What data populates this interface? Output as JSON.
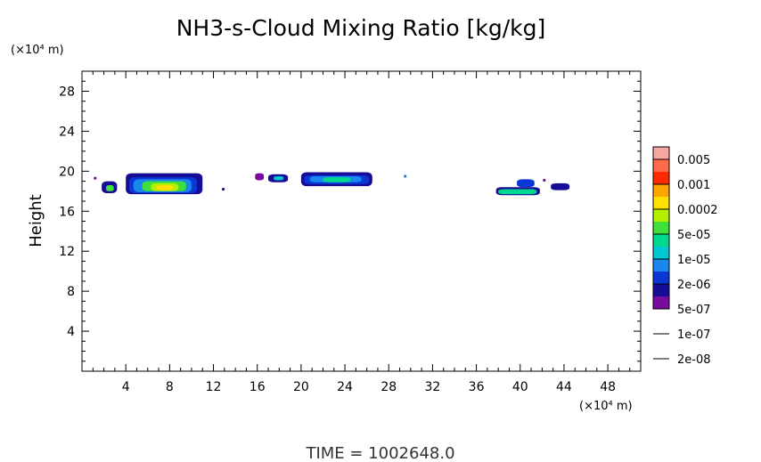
{
  "chart_data": {
    "type": "heatmap",
    "title": "NH3-s-Cloud Mixing Ratio [kg/kg]",
    "ylabel": "Height",
    "yunit": "(×10⁴ m)",
    "xunit": "(×10⁴ m)",
    "xlim": [
      0,
      51
    ],
    "ylim": [
      0,
      30
    ],
    "xticks": [
      "4",
      "8",
      "12",
      "16",
      "20",
      "24",
      "28",
      "32",
      "36",
      "40",
      "44",
      "48"
    ],
    "yticks": [
      "4",
      "8",
      "12",
      "16",
      "20",
      "24",
      "28"
    ],
    "colorbar": {
      "labels": [
        "0.005",
        "0.001",
        "0.0002",
        "5e-05",
        "1e-05",
        "2e-06",
        "5e-07",
        "1e-07",
        "2e-08"
      ],
      "colors": [
        "#f7a6a0",
        "#ff6a4a",
        "#ff2a00",
        "#ffa500",
        "#ffe000",
        "#b4ee00",
        "#3fe03a",
        "#00d88e",
        "#00c8d2",
        "#1a86ee",
        "#0a36d6",
        "#160c96",
        "#7a0aa0"
      ]
    },
    "regions": [
      {
        "x": [
          1.8,
          3.2
        ],
        "y": [
          17.8,
          19.0
        ],
        "level": 1
      },
      {
        "x": [
          2.2,
          2.9
        ],
        "y": [
          18.0,
          18.6
        ],
        "level": 6
      },
      {
        "x": [
          4.0,
          11.0
        ],
        "y": [
          17.7,
          19.8
        ],
        "level": 1
      },
      {
        "x": [
          4.3,
          10.5
        ],
        "y": [
          17.8,
          19.4
        ],
        "level": 2
      },
      {
        "x": [
          4.7,
          10.0
        ],
        "y": [
          17.9,
          19.2
        ],
        "level": 3
      },
      {
        "x": [
          5.5,
          9.5
        ],
        "y": [
          18.0,
          19.0
        ],
        "level": 6
      },
      {
        "x": [
          6.3,
          8.8
        ],
        "y": [
          18.0,
          18.8
        ],
        "level": 7
      },
      {
        "x": [
          6.8,
          8.3
        ],
        "y": [
          18.1,
          18.6
        ],
        "level": 8
      },
      {
        "x": [
          15.8,
          16.6
        ],
        "y": [
          19.1,
          19.8
        ],
        "level": 0
      },
      {
        "x": [
          17.0,
          18.8
        ],
        "y": [
          18.9,
          19.7
        ],
        "level": 1
      },
      {
        "x": [
          17.5,
          18.4
        ],
        "y": [
          19.1,
          19.5
        ],
        "level": 4
      },
      {
        "x": [
          20.0,
          26.5
        ],
        "y": [
          18.5,
          19.9
        ],
        "level": 1
      },
      {
        "x": [
          20.3,
          26.2
        ],
        "y": [
          18.7,
          19.6
        ],
        "level": 2
      },
      {
        "x": [
          20.8,
          25.5
        ],
        "y": [
          18.9,
          19.5
        ],
        "level": 3
      },
      {
        "x": [
          22.0,
          24.5
        ],
        "y": [
          18.9,
          19.4
        ],
        "level": 5
      },
      {
        "x": [
          37.8,
          41.8
        ],
        "y": [
          17.6,
          18.4
        ],
        "level": 1
      },
      {
        "x": [
          38.0,
          41.5
        ],
        "y": [
          17.7,
          18.2
        ],
        "level": 5
      },
      {
        "x": [
          39.7,
          41.3
        ],
        "y": [
          18.4,
          19.2
        ],
        "level": 2
      },
      {
        "x": [
          42.8,
          44.5
        ],
        "y": [
          18.1,
          18.8
        ],
        "level": 1
      }
    ],
    "specks": [
      {
        "x": 1.2,
        "y": 19.3,
        "level": 0
      },
      {
        "x": 12.9,
        "y": 18.2,
        "level": 1
      },
      {
        "x": 29.5,
        "y": 19.5,
        "level": 3
      },
      {
        "x": 42.2,
        "y": 19.1,
        "level": 0
      }
    ]
  },
  "footer": "TIME = 1002648.0"
}
